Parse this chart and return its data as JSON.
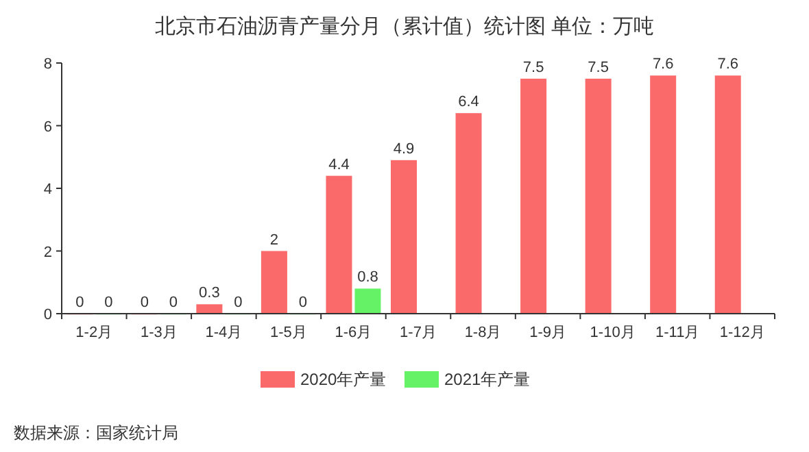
{
  "chart_data": {
    "type": "bar",
    "title": "北京市石油沥青产量分月（累计值）统计图 单位：万吨",
    "categories": [
      "1-2月",
      "1-3月",
      "1-4月",
      "1-5月",
      "1-6月",
      "1-7月",
      "1-8月",
      "1-9月",
      "1-10月",
      "1-11月",
      "1-12月"
    ],
    "series": [
      {
        "name": "2020年产量",
        "color": "#fb6a6a",
        "values": [
          0,
          0,
          0.3,
          2,
          4.4,
          4.9,
          6.4,
          7.5,
          7.5,
          7.6,
          7.6
        ]
      },
      {
        "name": "2021年产量",
        "color": "#66f266",
        "values": [
          0,
          0,
          0,
          0,
          0.8,
          null,
          null,
          null,
          null,
          null,
          null
        ]
      }
    ],
    "ylim": [
      0,
      8
    ],
    "yticks": [
      0,
      2,
      4,
      6,
      8
    ],
    "data_labels": true,
    "legend": "bottom",
    "grid": false,
    "annotations": [
      "数据来源：国家统计局"
    ]
  }
}
